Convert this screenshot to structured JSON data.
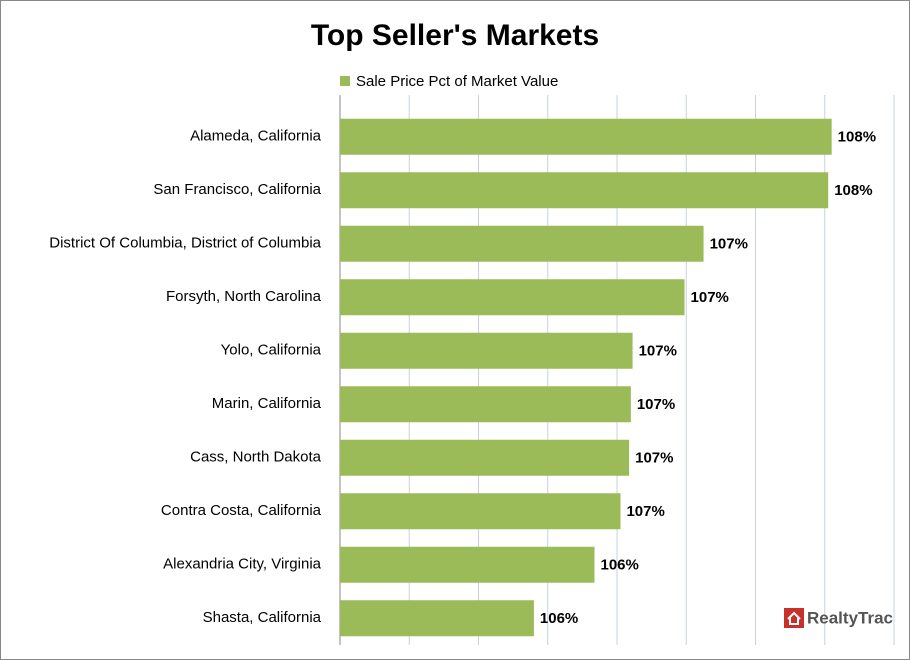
{
  "chart_data": {
    "type": "barh",
    "title": "Top Seller's Markets",
    "categories": [
      "Alameda, California",
      "San Francisco, California",
      "District Of Columbia, District of Columbia",
      "Forsyth, North Carolina",
      "Yolo, California",
      "Marin, California",
      "Cass, North Dakota",
      "Contra Costa, California",
      "Alexandria City, Virginia",
      "Shasta, California"
    ],
    "series": [
      {
        "name": "Sale Price Pct of Market Value",
        "color": "#9bbb59",
        "values": [
          107.84,
          107.82,
          107.1,
          106.99,
          106.69,
          106.68,
          106.67,
          106.62,
          106.47,
          106.12
        ],
        "value_labels": [
          "108%",
          "108%",
          "107%",
          "107%",
          "107%",
          "107%",
          "107%",
          "107%",
          "106%",
          "106%"
        ]
      }
    ],
    "xlim": [
      105,
      108.2
    ],
    "xticks": [
      105,
      105.4,
      105.8,
      106.2,
      106.6,
      107,
      107.4,
      107.8,
      108.2
    ],
    "grid": true,
    "legend": "top",
    "logo": "RealtyTrac"
  }
}
